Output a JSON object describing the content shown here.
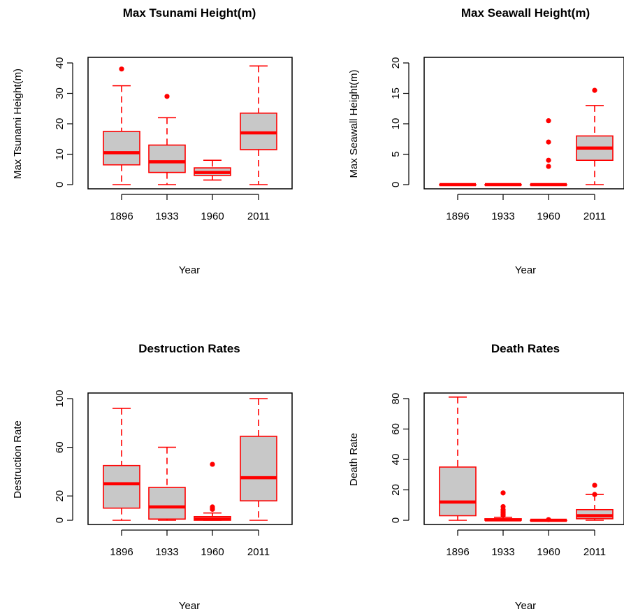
{
  "colors": {
    "box_stroke": "#ff0000",
    "box_fill": "#c8c8c8",
    "axis": "#000000"
  },
  "chart_data": [
    {
      "type": "boxplot",
      "title": "Max Tsunami Height(m)",
      "xlabel": "Year",
      "ylabel": "Max Tsunami Height(m)",
      "categories": [
        "1896",
        "1933",
        "1960",
        "2011"
      ],
      "ylim": [
        0,
        40
      ],
      "yticks": [
        0,
        10,
        20,
        30,
        40
      ],
      "boxes": [
        {
          "min": 0,
          "q1": 6.5,
          "median": 10.5,
          "q3": 17.5,
          "max": 32.5,
          "outliers": [
            38
          ]
        },
        {
          "min": 0,
          "q1": 4,
          "median": 7.5,
          "q3": 13,
          "max": 22,
          "outliers": [
            29
          ]
        },
        {
          "min": 1.5,
          "q1": 3,
          "median": 4,
          "q3": 5.5,
          "max": 8,
          "outliers": []
        },
        {
          "min": 0,
          "q1": 11.5,
          "median": 17,
          "q3": 23.5,
          "max": 39,
          "outliers": []
        }
      ]
    },
    {
      "type": "boxplot",
      "title": "Max Seawall Height(m)",
      "xlabel": "Year",
      "ylabel": "Max Seawall Height(m)",
      "categories": [
        "1896",
        "1933",
        "1960",
        "2011"
      ],
      "ylim": [
        0,
        20
      ],
      "yticks": [
        0,
        5,
        10,
        15,
        20
      ],
      "boxes": [
        {
          "min": 0,
          "q1": 0,
          "median": 0,
          "q3": 0,
          "max": 0,
          "outliers": []
        },
        {
          "min": 0,
          "q1": 0,
          "median": 0,
          "q3": 0,
          "max": 0,
          "outliers": []
        },
        {
          "min": 0,
          "q1": 0,
          "median": 0,
          "q3": 0,
          "max": 0,
          "outliers": [
            3,
            4,
            7,
            10.5
          ]
        },
        {
          "min": 0,
          "q1": 4,
          "median": 6,
          "q3": 8,
          "max": 13,
          "outliers": [
            15.5
          ]
        }
      ]
    },
    {
      "type": "boxplot",
      "title": "Destruction Rates",
      "xlabel": "Year",
      "ylabel": "Destruction Rate",
      "categories": [
        "1896",
        "1933",
        "1960",
        "2011"
      ],
      "ylim": [
        0,
        100
      ],
      "yticks": [
        0,
        20,
        60,
        100
      ],
      "boxes": [
        {
          "min": 0,
          "q1": 10,
          "median": 30,
          "q3": 45,
          "max": 92,
          "outliers": []
        },
        {
          "min": 0,
          "q1": 1,
          "median": 11,
          "q3": 27,
          "max": 60,
          "outliers": []
        },
        {
          "min": 0,
          "q1": 0,
          "median": 1,
          "q3": 3,
          "max": 6,
          "outliers": [
            9,
            10,
            11,
            46
          ]
        },
        {
          "min": 0,
          "q1": 16,
          "median": 35,
          "q3": 69,
          "max": 100,
          "outliers": []
        }
      ]
    },
    {
      "type": "boxplot",
      "title": "Death Rates",
      "xlabel": "Year",
      "ylabel": "Death Rate",
      "categories": [
        "1896",
        "1933",
        "1960",
        "2011"
      ],
      "ylim": [
        0,
        80
      ],
      "yticks": [
        0,
        20,
        40,
        60,
        80
      ],
      "boxes": [
        {
          "min": 0,
          "q1": 3,
          "median": 12,
          "q3": 35,
          "max": 81,
          "outliers": []
        },
        {
          "min": 0,
          "q1": 0,
          "median": 0.3,
          "q3": 1,
          "max": 2,
          "outliers": [
            3,
            4,
            5,
            6,
            7,
            9,
            18
          ]
        },
        {
          "min": 0,
          "q1": 0,
          "median": 0,
          "q3": 0,
          "max": 0,
          "outliers": [
            0.5
          ]
        },
        {
          "min": 0,
          "q1": 1,
          "median": 3,
          "q3": 7,
          "max": 17,
          "outliers": [
            17,
            23
          ]
        }
      ]
    }
  ]
}
